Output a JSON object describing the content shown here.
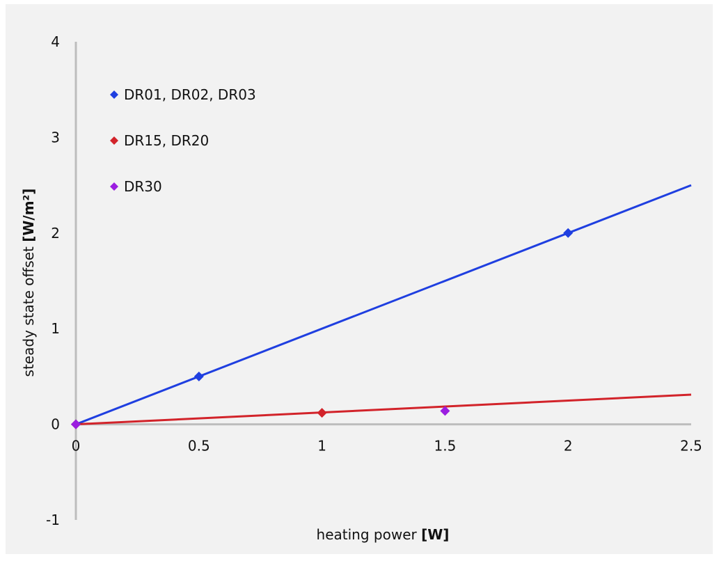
{
  "chart_data": {
    "type": "scatter",
    "title": "",
    "xlabel": {
      "text": "heating power ",
      "unit": "[W]"
    },
    "ylabel": {
      "text": "steady state offset ",
      "unit": "[W/m²]"
    },
    "xlim": [
      0,
      2.5
    ],
    "ylim": [
      -1,
      4
    ],
    "x_ticks": [
      0,
      0.5,
      1,
      1.5,
      2,
      2.5
    ],
    "y_ticks": [
      -1,
      0,
      1,
      2,
      3,
      4
    ],
    "x_tick_labels": [
      "0",
      "0.5",
      "1",
      "1.5",
      "2",
      "2.5"
    ],
    "y_tick_labels": [
      "-1",
      "0",
      "1",
      "2",
      "3",
      "4"
    ],
    "grid": false,
    "legend_position": "top-left",
    "series": [
      {
        "name": "DR01, DR02, DR03",
        "color": "#1f3fe0",
        "points": [
          [
            0,
            0
          ],
          [
            0.5,
            0.5
          ],
          [
            2,
            2
          ]
        ],
        "trendline": {
          "slope": 1.0,
          "x_range": [
            0,
            2.5
          ]
        }
      },
      {
        "name": "DR15, DR20",
        "color": "#d2232a",
        "points": [
          [
            0,
            0
          ],
          [
            1,
            0.12
          ]
        ],
        "trendline": {
          "slope": 0.124,
          "x_range": [
            0,
            2.5
          ]
        }
      },
      {
        "name": "DR30",
        "color": "#9b1ee0",
        "points": [
          [
            0,
            0
          ],
          [
            1.5,
            0.14
          ]
        ]
      }
    ]
  }
}
